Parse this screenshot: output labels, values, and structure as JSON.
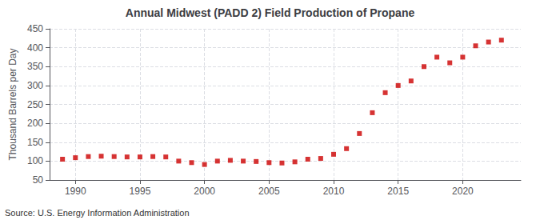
{
  "chart_data": {
    "type": "scatter",
    "title": "Annual Midwest (PADD 2) Field Production of Propane",
    "ylabel": "Thousand Barrels per Day",
    "annotations": [
      "Source: U.S. Energy Information Administration"
    ],
    "x": [
      1989,
      1990,
      1991,
      1992,
      1993,
      1994,
      1995,
      1996,
      1997,
      1998,
      1999,
      2000,
      2001,
      2002,
      2003,
      2004,
      2005,
      2006,
      2007,
      2008,
      2009,
      2010,
      2011,
      2012,
      2013,
      2014,
      2015,
      2016,
      2017,
      2018,
      2019,
      2020,
      2021,
      2022,
      2023
    ],
    "values": [
      105,
      109,
      112,
      113,
      112,
      111,
      111,
      112,
      111,
      100,
      96,
      91,
      100,
      102,
      100,
      99,
      96,
      95,
      98,
      105,
      107,
      118,
      133,
      173,
      228,
      281,
      300,
      312,
      350,
      375,
      360,
      375,
      405,
      415,
      420
    ],
    "color": "#cc0000",
    "marker": "square",
    "xlim": [
      1988,
      2024.5
    ],
    "ylim": [
      50,
      450
    ],
    "xticks": [
      1990,
      1995,
      2000,
      2005,
      2010,
      2015,
      2020
    ],
    "yticks": [
      50,
      100,
      150,
      200,
      250,
      300,
      350,
      400,
      450
    ],
    "grid": true
  }
}
